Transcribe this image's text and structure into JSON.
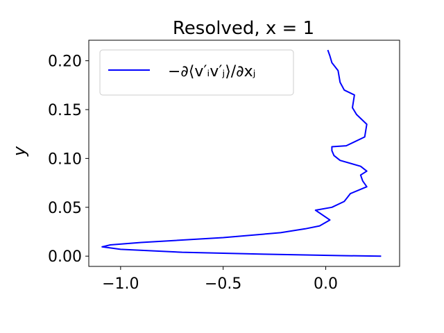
{
  "chart_data": {
    "type": "line",
    "title": "Resolved, x = 1",
    "xlabel": "",
    "ylabel": "y",
    "xlim": [
      -1.155,
      0.36
    ],
    "ylim": [
      -0.0105,
      0.221
    ],
    "x_ticks": [
      {
        "value": -1.0,
        "label": "−1.0"
      },
      {
        "value": -0.5,
        "label": "−0.5"
      },
      {
        "value": 0.0,
        "label": "0.0"
      }
    ],
    "y_ticks": [
      {
        "value": 0.0,
        "label": "0.00"
      },
      {
        "value": 0.05,
        "label": "0.05"
      },
      {
        "value": 0.1,
        "label": "0.10"
      },
      {
        "value": 0.15,
        "label": "0.15"
      },
      {
        "value": 0.2,
        "label": "0.20"
      }
    ],
    "grid": false,
    "legend": {
      "placement": "top-left"
    },
    "series": [
      {
        "name": "−∂⟨v′ᵢv′ⱼ⟩/∂xⱼ",
        "color": "#0000ff",
        "points": [
          [
            0.27,
            0.0
          ],
          [
            0.08,
            0.0005
          ],
          [
            -0.3,
            0.002
          ],
          [
            -0.7,
            0.004
          ],
          [
            -1.0,
            0.007
          ],
          [
            -1.09,
            0.0095
          ],
          [
            -1.05,
            0.0115
          ],
          [
            -0.9,
            0.014
          ],
          [
            -0.5,
            0.019
          ],
          [
            -0.22,
            0.024
          ],
          [
            -0.1,
            0.028
          ],
          [
            -0.03,
            0.031
          ],
          [
            0.02,
            0.037
          ],
          [
            -0.05,
            0.047
          ],
          [
            0.03,
            0.05
          ],
          [
            0.09,
            0.056
          ],
          [
            0.12,
            0.064
          ],
          [
            0.2,
            0.071
          ],
          [
            0.18,
            0.077
          ],
          [
            0.17,
            0.083
          ],
          [
            0.2,
            0.087
          ],
          [
            0.17,
            0.092
          ],
          [
            0.07,
            0.098
          ],
          [
            0.04,
            0.103
          ],
          [
            0.03,
            0.108
          ],
          [
            0.03,
            0.112
          ],
          [
            0.1,
            0.113
          ],
          [
            0.19,
            0.122
          ],
          [
            0.2,
            0.135
          ],
          [
            0.15,
            0.145
          ],
          [
            0.13,
            0.152
          ],
          [
            0.14,
            0.165
          ],
          [
            0.09,
            0.17
          ],
          [
            0.07,
            0.178
          ],
          [
            0.06,
            0.19
          ],
          [
            0.03,
            0.198
          ],
          [
            0.02,
            0.205
          ],
          [
            0.01,
            0.211
          ]
        ]
      }
    ]
  }
}
